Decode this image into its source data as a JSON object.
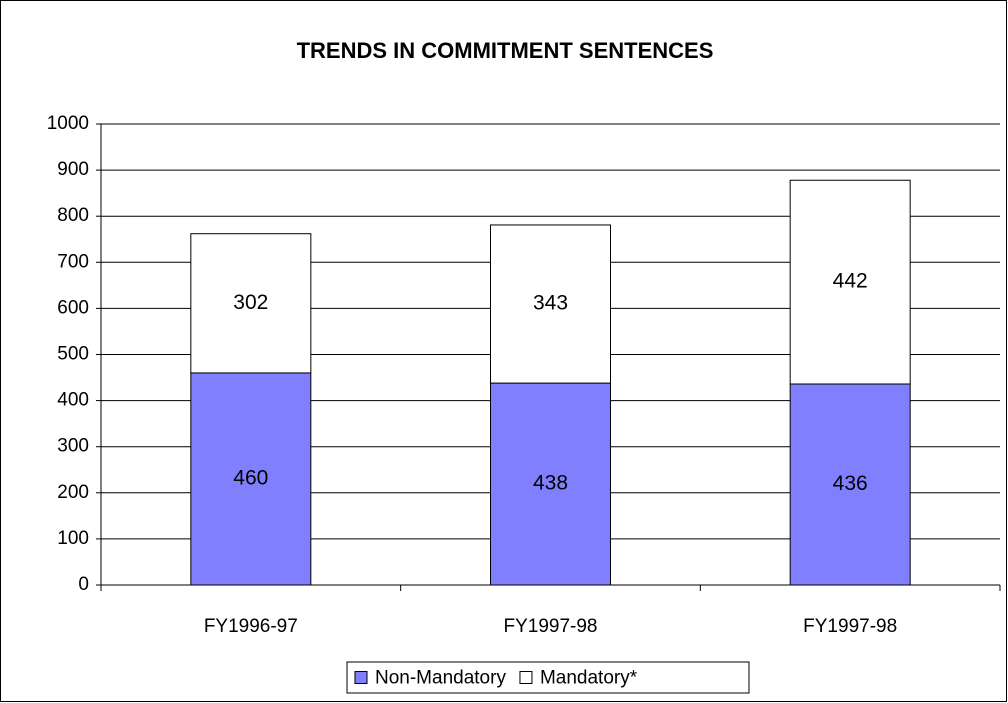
{
  "chart_data": {
    "type": "bar",
    "stacked": true,
    "title": "TRENDS IN COMMITMENT SENTENCES",
    "categories": [
      "FY1996-97",
      "FY1997-98",
      "FY1997-98"
    ],
    "series": [
      {
        "name": "Non-Mandatory",
        "color": "#8080ff",
        "values": [
          460,
          438,
          436
        ]
      },
      {
        "name": "Mandatory*",
        "color": "#ffffff",
        "values": [
          302,
          343,
          442
        ]
      }
    ],
    "ylim": [
      0,
      1000
    ],
    "yticks": [
      0,
      100,
      200,
      300,
      400,
      500,
      600,
      700,
      800,
      900,
      1000
    ],
    "grid": true,
    "legend": "bottom"
  }
}
